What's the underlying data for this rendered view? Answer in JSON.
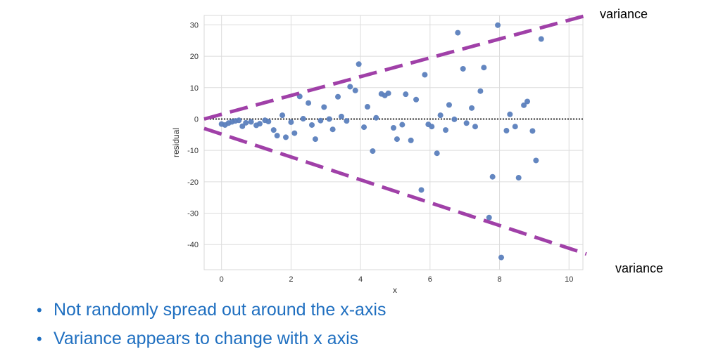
{
  "bullets": [
    "Not randomly spread out around the x-axis",
    "Variance appears to change with x axis"
  ],
  "annotations": {
    "upper_label": "variance",
    "lower_label": "variance",
    "envelope_color": "#a040a8",
    "upper_line": {
      "x0": -0.5,
      "y0": 0,
      "x1": 10.5,
      "y1": 33
    },
    "lower_line": {
      "x0": -0.5,
      "y0": -3,
      "x1": 10.5,
      "y1": -43
    }
  },
  "chart_data": {
    "type": "scatter",
    "xlabel": "x",
    "ylabel": "residual",
    "xlim": [
      -0.5,
      10.4
    ],
    "ylim": [
      -48,
      33
    ],
    "xticks": [
      0,
      2,
      4,
      6,
      8,
      10
    ],
    "yticks": [
      -40,
      -30,
      -20,
      -10,
      0,
      10,
      20,
      30
    ],
    "grid": true,
    "reference_line": 0,
    "point_color": "#5b7fbd",
    "points": [
      [
        0.0,
        -1.6
      ],
      [
        0.1,
        -1.9
      ],
      [
        0.2,
        -1.3
      ],
      [
        0.3,
        -0.9
      ],
      [
        0.4,
        -0.6
      ],
      [
        0.5,
        -0.4
      ],
      [
        0.6,
        -2.3
      ],
      [
        0.7,
        -1.2
      ],
      [
        0.85,
        -0.9
      ],
      [
        1.0,
        -2.0
      ],
      [
        1.1,
        -1.5
      ],
      [
        1.25,
        -0.4
      ],
      [
        1.35,
        -0.8
      ],
      [
        1.5,
        -3.5
      ],
      [
        1.6,
        -5.3
      ],
      [
        1.75,
        1.2
      ],
      [
        1.85,
        -5.8
      ],
      [
        2.0,
        -1.0
      ],
      [
        2.1,
        -4.5
      ],
      [
        2.25,
        7.2
      ],
      [
        2.35,
        0.1
      ],
      [
        2.5,
        5.1
      ],
      [
        2.6,
        -1.9
      ],
      [
        2.7,
        -6.4
      ],
      [
        2.85,
        -0.5
      ],
      [
        2.95,
        3.8
      ],
      [
        3.1,
        0.0
      ],
      [
        3.2,
        -3.3
      ],
      [
        3.35,
        7.1
      ],
      [
        3.45,
        0.8
      ],
      [
        3.6,
        -0.6
      ],
      [
        3.7,
        10.3
      ],
      [
        3.85,
        9.1
      ],
      [
        3.95,
        17.5
      ],
      [
        4.1,
        -2.6
      ],
      [
        4.2,
        3.9
      ],
      [
        4.35,
        -10.2
      ],
      [
        4.45,
        0.4
      ],
      [
        4.6,
        8.0
      ],
      [
        4.7,
        7.5
      ],
      [
        4.8,
        8.2
      ],
      [
        4.95,
        -2.8
      ],
      [
        5.05,
        -6.4
      ],
      [
        5.2,
        -1.8
      ],
      [
        5.3,
        7.9
      ],
      [
        5.45,
        -6.8
      ],
      [
        5.6,
        6.2
      ],
      [
        5.75,
        -22.6
      ],
      [
        5.85,
        14.1
      ],
      [
        5.95,
        -1.7
      ],
      [
        6.05,
        -2.4
      ],
      [
        6.2,
        -10.9
      ],
      [
        6.3,
        1.2
      ],
      [
        6.45,
        -3.5
      ],
      [
        6.55,
        4.5
      ],
      [
        6.7,
        -0.1
      ],
      [
        6.8,
        27.5
      ],
      [
        6.95,
        16.0
      ],
      [
        7.05,
        -1.3
      ],
      [
        7.2,
        3.5
      ],
      [
        7.3,
        -2.4
      ],
      [
        7.45,
        8.9
      ],
      [
        7.55,
        16.4
      ],
      [
        7.7,
        -31.4
      ],
      [
        7.8,
        -18.4
      ],
      [
        7.95,
        29.9
      ],
      [
        8.05,
        -44.1
      ],
      [
        8.2,
        -3.7
      ],
      [
        8.3,
        1.5
      ],
      [
        8.45,
        -2.4
      ],
      [
        8.55,
        -18.7
      ],
      [
        8.7,
        4.4
      ],
      [
        8.8,
        5.6
      ],
      [
        8.95,
        -3.8
      ],
      [
        9.05,
        -13.2
      ],
      [
        9.2,
        25.5
      ]
    ]
  }
}
